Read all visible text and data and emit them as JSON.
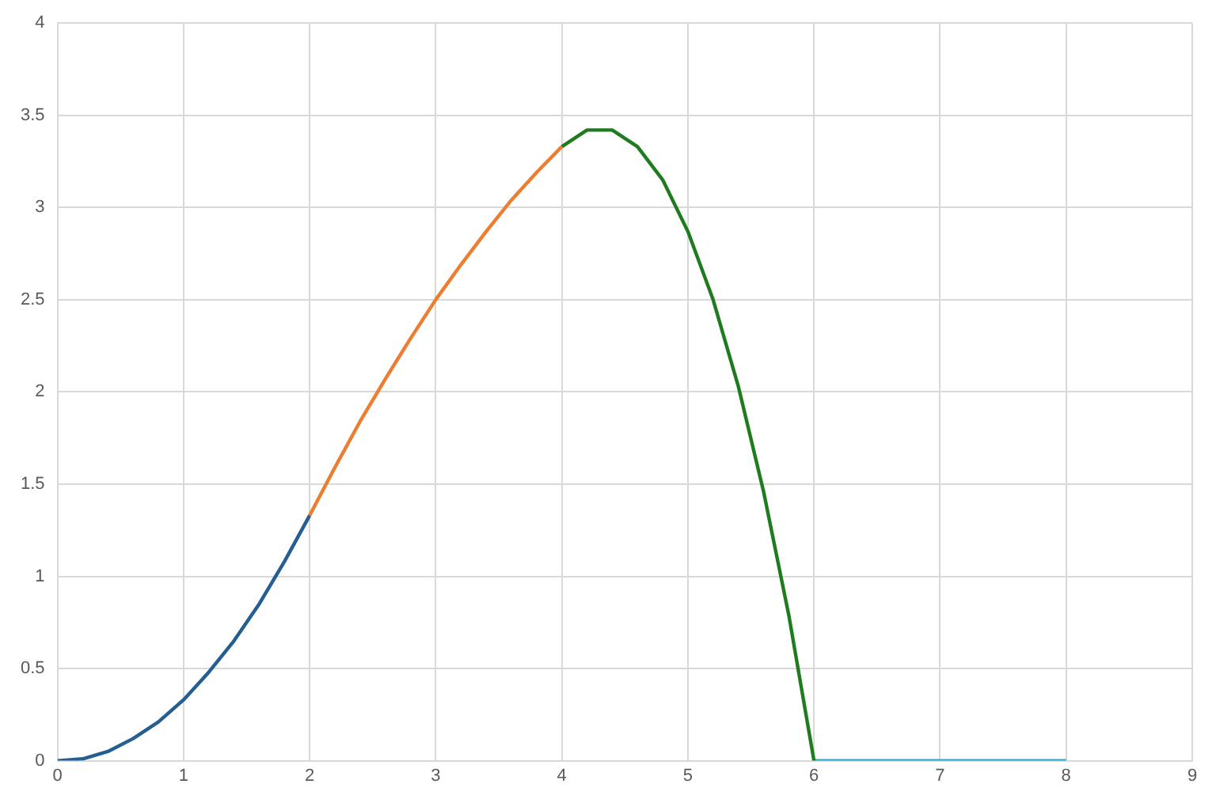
{
  "chart_data": {
    "type": "line",
    "xlim": [
      0,
      9
    ],
    "xticks": [
      0,
      1,
      2,
      3,
      4,
      5,
      6,
      7,
      8,
      9
    ],
    "ylim": [
      0,
      4
    ],
    "yticks": [
      0,
      0.5,
      1,
      1.5,
      2,
      2.5,
      3,
      3.5,
      4
    ],
    "grid": true,
    "legend": false,
    "marker": "none",
    "line_style": "solid",
    "series": [
      {
        "color": "#255e91",
        "x": [
          0,
          0.2,
          0.4,
          0.6,
          0.8,
          1,
          1.2,
          1.4,
          1.6,
          1.8,
          2
        ],
        "values": [
          0,
          0.01,
          0.05,
          0.12,
          0.21,
          0.33,
          0.48,
          0.65,
          0.85,
          1.08,
          1.33
        ]
      },
      {
        "color": "#ed7d31",
        "x": [
          2,
          2.2,
          2.4,
          2.6,
          2.8,
          3,
          3.2,
          3.4,
          3.6,
          3.8,
          4
        ],
        "values": [
          1.33,
          1.59,
          1.84,
          2.07,
          2.29,
          2.5,
          2.69,
          2.87,
          3.04,
          3.19,
          3.33
        ]
      },
      {
        "color": "#1e7b1e",
        "x": [
          4,
          4.2,
          4.4,
          4.6,
          4.8,
          5,
          5.2,
          5.4,
          5.6,
          5.8,
          6
        ],
        "values": [
          3.33,
          3.42,
          3.42,
          3.33,
          3.15,
          2.87,
          2.5,
          2.03,
          1.46,
          0.79,
          0
        ]
      },
      {
        "color": "#26a9c9",
        "x": [
          6,
          8
        ],
        "values": [
          0,
          0
        ]
      }
    ]
  }
}
